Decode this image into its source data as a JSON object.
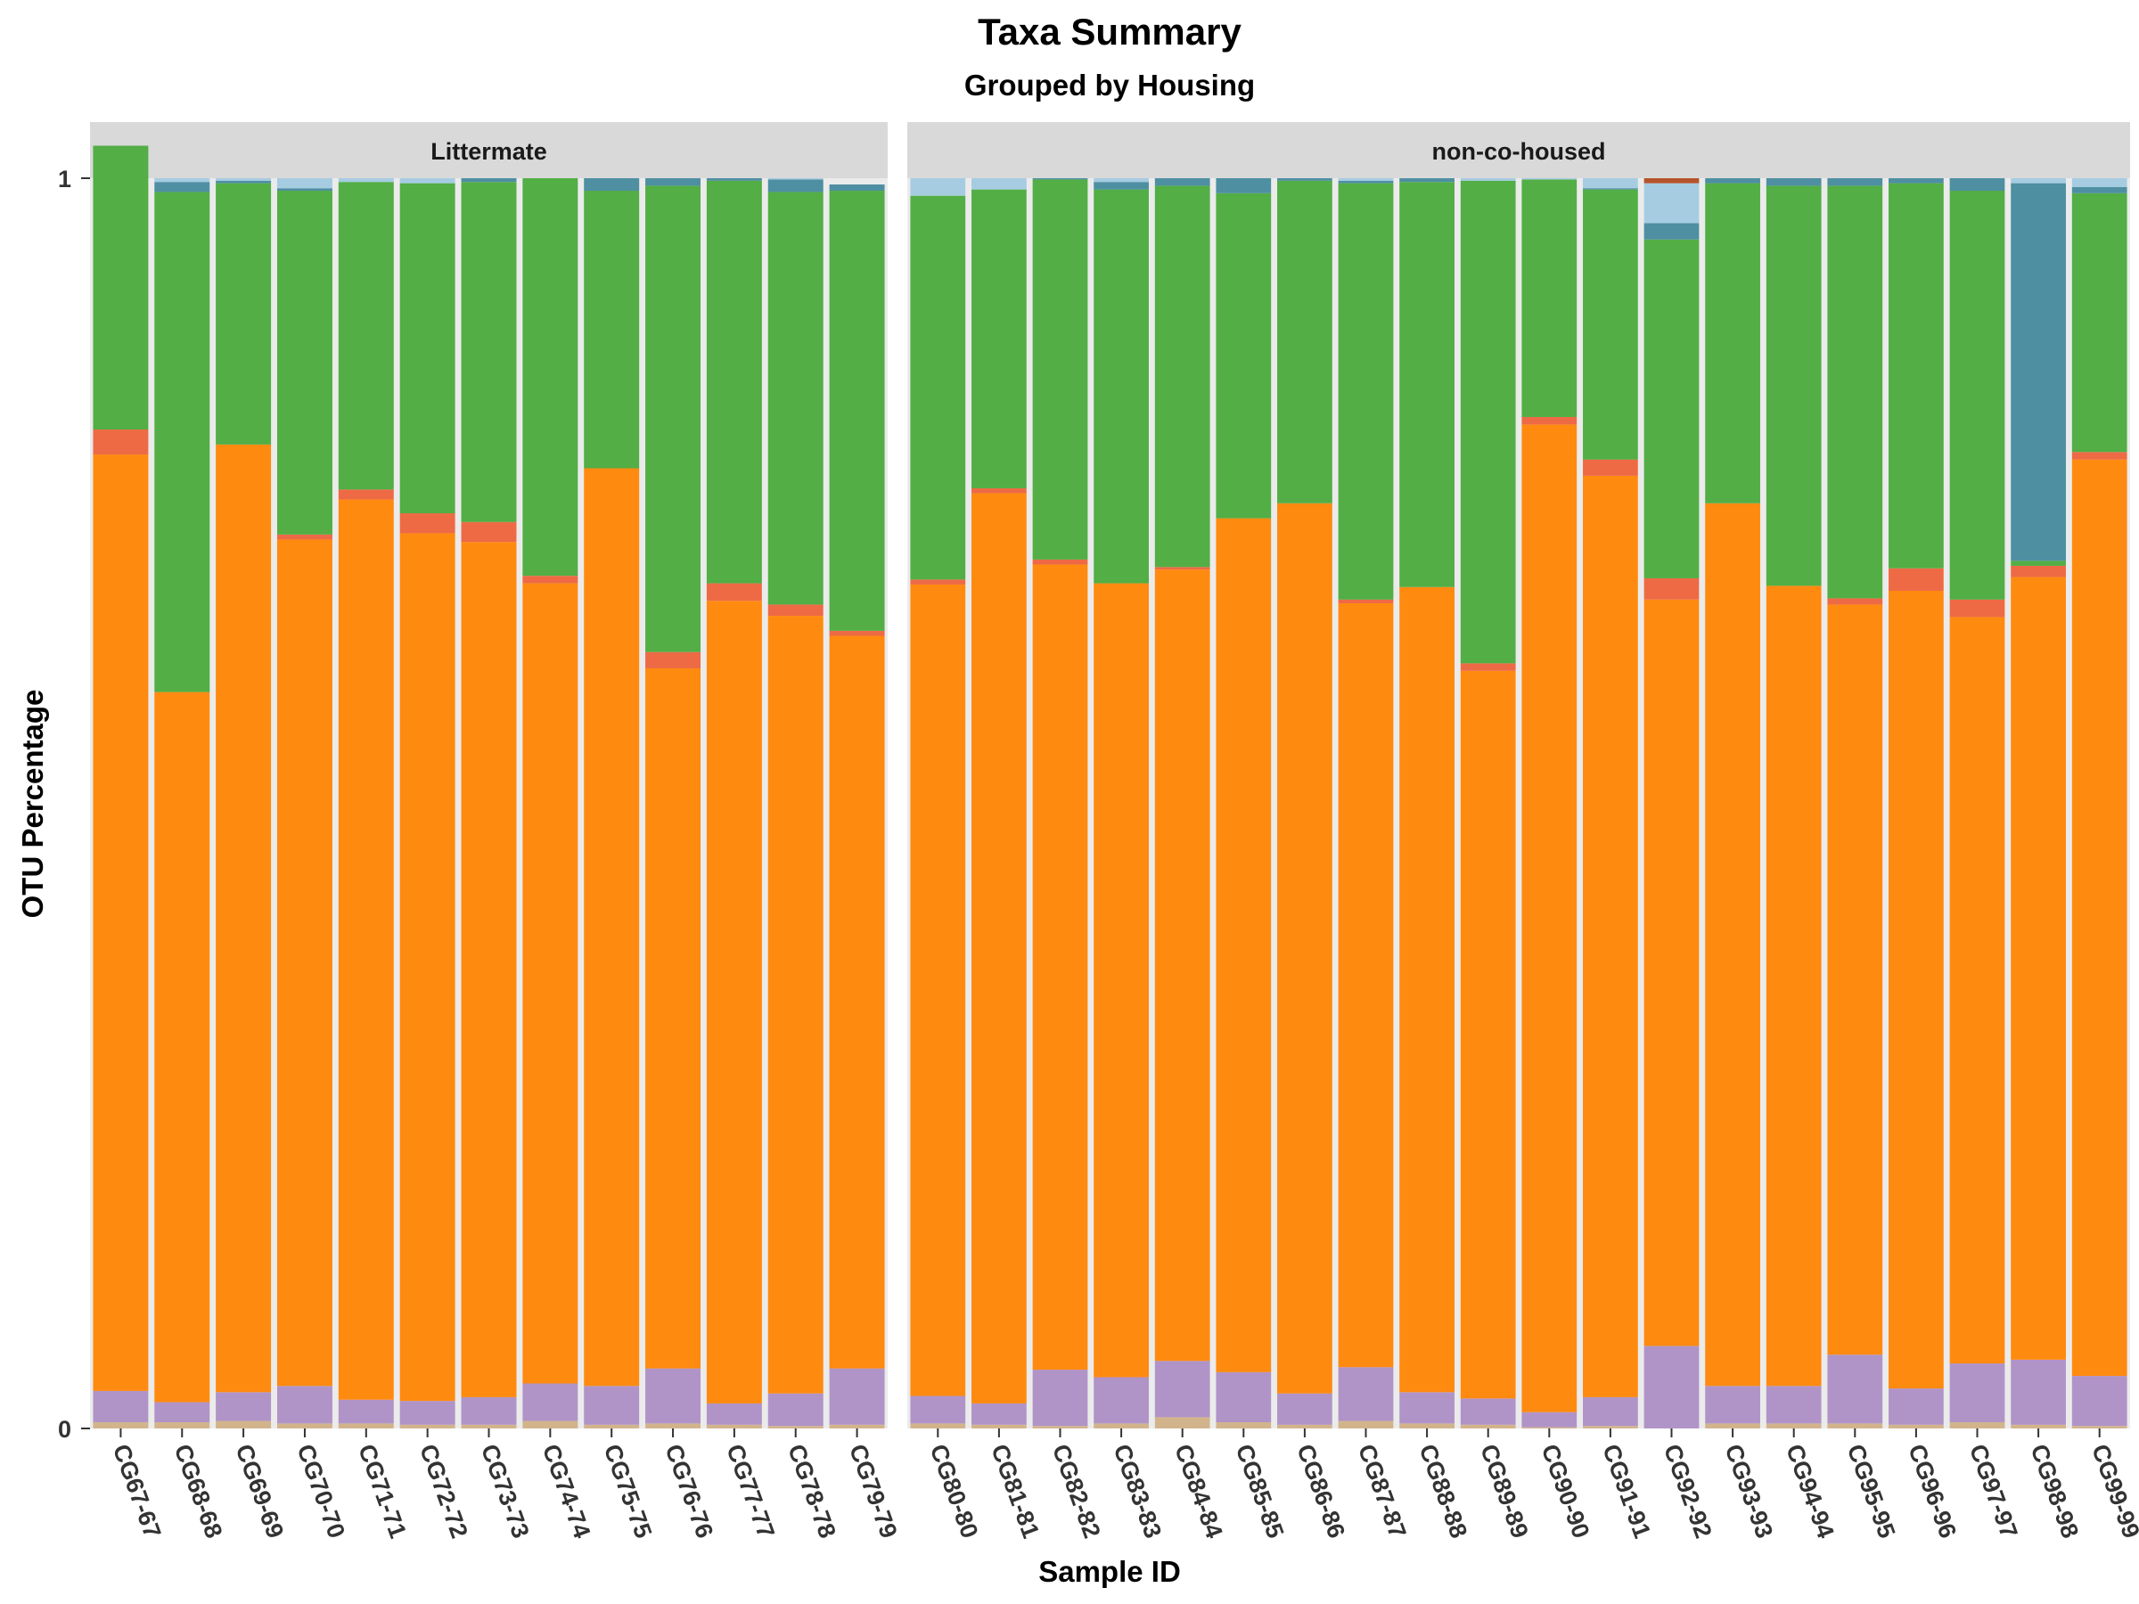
{
  "chart_data": {
    "type": "bar",
    "stacked": true,
    "title": "Taxa Summary",
    "subtitle": "Grouped by Housing",
    "xlabel": "Sample ID",
    "ylabel": "OTU Percentage",
    "ylim": [
      0,
      1
    ],
    "y_ticks": [
      "0",
      "1"
    ],
    "grid": false,
    "legend": "none",
    "layer_colors": [
      "#D2B48C",
      "#B094C8",
      "#FF8A10",
      "#EE6A45",
      "#52AE45",
      "#4E8FA2",
      "#A6CCE2",
      "#B5542A",
      "#F08CA0"
    ],
    "panels": [
      {
        "label": "Littermate",
        "samples": [
          {
            "id": "CG67-67",
            "layers": [
              0.005,
              0.025,
              0.749,
              0.02,
              0.227,
              0.0,
              0.0
            ]
          },
          {
            "id": "CG68-68",
            "layers": [
              0.005,
              0.016,
              0.568,
              0.0,
              0.4,
              0.008,
              0.003
            ]
          },
          {
            "id": "CG69-69",
            "layers": [
              0.006,
              0.023,
              0.758,
              0.0,
              0.209,
              0.002,
              0.002
            ]
          },
          {
            "id": "CG70-70",
            "layers": [
              0.004,
              0.03,
              0.677,
              0.004,
              0.275,
              0.002,
              0.008
            ]
          },
          {
            "id": "CG71-71",
            "layers": [
              0.004,
              0.019,
              0.72,
              0.008,
              0.246,
              0.0,
              0.003
            ]
          },
          {
            "id": "CG72-72",
            "layers": [
              0.003,
              0.019,
              0.694,
              0.016,
              0.264,
              0.0,
              0.004
            ]
          },
          {
            "id": "CG73-73",
            "layers": [
              0.003,
              0.022,
              0.684,
              0.016,
              0.272,
              0.003,
              0.0
            ]
          },
          {
            "id": "CG74-74",
            "layers": [
              0.006,
              0.03,
              0.64,
              0.006,
              0.318,
              0.0,
              0.0
            ]
          },
          {
            "id": "CG75-75",
            "layers": [
              0.003,
              0.031,
              0.734,
              0.0,
              0.222,
              0.01,
              0.0
            ]
          },
          {
            "id": "CG76-76",
            "layers": [
              0.004,
              0.044,
              0.56,
              0.013,
              0.373,
              0.006,
              0.0
            ]
          },
          {
            "id": "CG77-77",
            "layers": [
              0.003,
              0.017,
              0.642,
              0.014,
              0.322,
              0.002,
              0.0
            ]
          },
          {
            "id": "CG78-78",
            "layers": [
              0.002,
              0.026,
              0.622,
              0.009,
              0.33,
              0.01,
              0.001
            ]
          },
          {
            "id": "CG79-79",
            "layers": [
              0.003,
              0.045,
              0.586,
              0.004,
              0.352,
              0.005,
              0.0
            ]
          }
        ]
      },
      {
        "label": "non-co-housed",
        "samples": [
          {
            "id": "CG80-80",
            "layers": [
              0.004,
              0.022,
              0.649,
              0.004,
              0.307,
              0.0,
              0.014
            ]
          },
          {
            "id": "CG81-81",
            "layers": [
              0.003,
              0.017,
              0.728,
              0.004,
              0.239,
              0.0,
              0.009
            ]
          },
          {
            "id": "CG82-82",
            "layers": [
              0.002,
              0.045,
              0.644,
              0.004,
              0.304,
              0.001,
              0.0
            ]
          },
          {
            "id": "CG83-83",
            "layers": [
              0.004,
              0.037,
              0.635,
              0.0,
              0.315,
              0.006,
              0.003
            ]
          },
          {
            "id": "CG84-84",
            "layers": [
              0.009,
              0.045,
              0.633,
              0.002,
              0.305,
              0.006,
              0.0
            ]
          },
          {
            "id": "CG85-85",
            "layers": [
              0.005,
              0.04,
              0.683,
              0.0,
              0.26,
              0.012,
              0.0
            ]
          },
          {
            "id": "CG86-86",
            "layers": [
              0.003,
              0.025,
              0.712,
              0.0,
              0.258,
              0.002,
              0.0
            ]
          },
          {
            "id": "CG87-87",
            "layers": [
              0.006,
              0.043,
              0.611,
              0.003,
              0.333,
              0.002,
              0.002
            ]
          },
          {
            "id": "CG88-88",
            "layers": [
              0.004,
              0.025,
              0.644,
              0.0,
              0.324,
              0.003,
              0.0
            ]
          },
          {
            "id": "CG89-89",
            "layers": [
              0.003,
              0.021,
              0.582,
              0.006,
              0.386,
              0.0,
              0.002
            ]
          },
          {
            "id": "CG90-90",
            "layers": [
              0.001,
              0.012,
              0.79,
              0.006,
              0.19,
              0.0,
              0.001
            ]
          },
          {
            "id": "CG91-91",
            "layers": [
              0.002,
              0.023,
              0.737,
              0.013,
              0.216,
              0.001,
              0.008
            ]
          },
          {
            "id": "CG92-92",
            "layers": [
              0.0,
              0.066,
              0.597,
              0.017,
              0.271,
              0.013,
              0.032,
              0.004
            ]
          },
          {
            "id": "CG93-93",
            "layers": [
              0.004,
              0.03,
              0.706,
              0.0,
              0.256,
              0.004,
              0.0
            ]
          },
          {
            "id": "CG94-94",
            "layers": [
              0.004,
              0.03,
              0.64,
              0.0,
              0.32,
              0.006,
              0.0
            ]
          },
          {
            "id": "CG95-95",
            "layers": [
              0.004,
              0.055,
              0.6,
              0.005,
              0.33,
              0.006,
              0.0
            ]
          },
          {
            "id": "CG96-96",
            "layers": [
              0.003,
              0.029,
              0.638,
              0.018,
              0.308,
              0.004,
              0.0
            ]
          },
          {
            "id": "CG97-97",
            "layers": [
              0.005,
              0.047,
              0.597,
              0.014,
              0.327,
              0.01,
              0.0
            ]
          },
          {
            "id": "CG98-98",
            "layers": [
              0.003,
              0.052,
              0.626,
              0.009,
              0.004,
              0.302,
              0.004
            ]
          },
          {
            "id": "CG99-99",
            "layers": [
              0.002,
              0.04,
              0.733,
              0.006,
              0.207,
              0.005,
              0.007
            ]
          }
        ]
      }
    ]
  }
}
